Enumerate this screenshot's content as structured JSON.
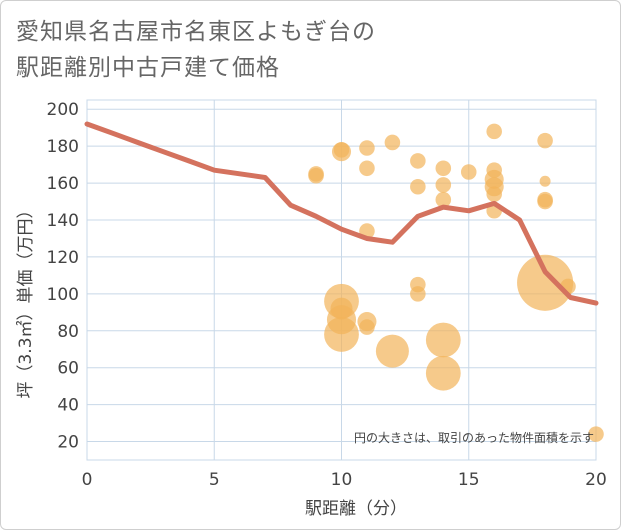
{
  "title_lines": [
    "愛知県名古屋市名東区よもぎ台の",
    "駅距離別中古戸建て価格"
  ],
  "chart_data": {
    "type": "scatter",
    "title": "愛知県名古屋市名東区よもぎ台の駅距離別中古戸建て価格",
    "xlabel": "駅距離（分）",
    "ylabel": "坪（3.3㎡）単価（万円）",
    "xlim": [
      0,
      20
    ],
    "ylim": [
      10,
      205
    ],
    "x_ticks": [
      0,
      5,
      10,
      15,
      20
    ],
    "y_ticks": [
      20,
      40,
      60,
      80,
      100,
      120,
      140,
      160,
      180,
      200
    ],
    "grid": true,
    "note": "円の大きさは、取引のあった物件面積を示す",
    "colors": {
      "bubble": "#f2b45a",
      "line": "#d4725e",
      "grid": "#c8d8e8"
    },
    "bubbles": [
      {
        "x": 9,
        "y": 165,
        "size": 2
      },
      {
        "x": 9,
        "y": 164,
        "size": 2
      },
      {
        "x": 10,
        "y": 178,
        "size": 2
      },
      {
        "x": 10,
        "y": 177,
        "size": 3
      },
      {
        "x": 10,
        "y": 96,
        "size": 10
      },
      {
        "x": 10,
        "y": 92,
        "size": 4
      },
      {
        "x": 10,
        "y": 86,
        "size": 7
      },
      {
        "x": 10,
        "y": 78,
        "size": 10
      },
      {
        "x": 11,
        "y": 179,
        "size": 2
      },
      {
        "x": 11,
        "y": 168,
        "size": 2
      },
      {
        "x": 11,
        "y": 134,
        "size": 2
      },
      {
        "x": 11,
        "y": 85,
        "size": 3
      },
      {
        "x": 11,
        "y": 82,
        "size": 2
      },
      {
        "x": 12,
        "y": 182,
        "size": 2
      },
      {
        "x": 12,
        "y": 69,
        "size": 9
      },
      {
        "x": 13,
        "y": 172,
        "size": 2
      },
      {
        "x": 13,
        "y": 158,
        "size": 2
      },
      {
        "x": 13,
        "y": 105,
        "size": 2
      },
      {
        "x": 13,
        "y": 100,
        "size": 2
      },
      {
        "x": 14,
        "y": 168,
        "size": 2
      },
      {
        "x": 14,
        "y": 159,
        "size": 2
      },
      {
        "x": 14,
        "y": 151,
        "size": 2
      },
      {
        "x": 14,
        "y": 75,
        "size": 10
      },
      {
        "x": 14,
        "y": 57,
        "size": 10
      },
      {
        "x": 15,
        "y": 166,
        "size": 2
      },
      {
        "x": 16,
        "y": 188,
        "size": 2
      },
      {
        "x": 16,
        "y": 167,
        "size": 2
      },
      {
        "x": 16,
        "y": 162,
        "size": 3
      },
      {
        "x": 16,
        "y": 158,
        "size": 3
      },
      {
        "x": 16,
        "y": 154,
        "size": 2
      },
      {
        "x": 16,
        "y": 145,
        "size": 2
      },
      {
        "x": 18,
        "y": 183,
        "size": 2
      },
      {
        "x": 18,
        "y": 161,
        "size": 1
      },
      {
        "x": 18,
        "y": 151,
        "size": 2
      },
      {
        "x": 18,
        "y": 150,
        "size": 2
      },
      {
        "x": 18,
        "y": 106,
        "size": 26
      },
      {
        "x": 18.9,
        "y": 104,
        "size": 2
      },
      {
        "x": 20,
        "y": 24,
        "size": 2
      }
    ],
    "trend_line": [
      {
        "x": 0,
        "y": 192
      },
      {
        "x": 1,
        "y": 187
      },
      {
        "x": 2,
        "y": 182
      },
      {
        "x": 3,
        "y": 177
      },
      {
        "x": 4,
        "y": 172
      },
      {
        "x": 5,
        "y": 167
      },
      {
        "x": 6,
        "y": 165
      },
      {
        "x": 7,
        "y": 163
      },
      {
        "x": 8,
        "y": 148
      },
      {
        "x": 9,
        "y": 142
      },
      {
        "x": 10,
        "y": 135
      },
      {
        "x": 11,
        "y": 130
      },
      {
        "x": 12,
        "y": 128
      },
      {
        "x": 13,
        "y": 142
      },
      {
        "x": 14,
        "y": 147
      },
      {
        "x": 15,
        "y": 145
      },
      {
        "x": 16,
        "y": 149
      },
      {
        "x": 17,
        "y": 140
      },
      {
        "x": 18,
        "y": 112
      },
      {
        "x": 19,
        "y": 98
      },
      {
        "x": 20,
        "y": 95
      }
    ]
  }
}
